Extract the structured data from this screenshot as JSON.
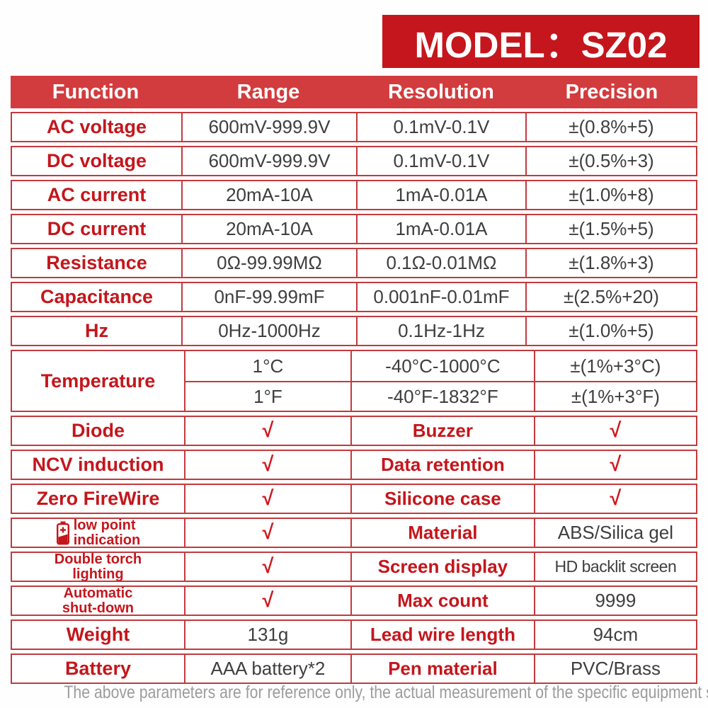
{
  "banner": {
    "title": "MODEL：SZ02"
  },
  "colors": {
    "brand_red": "#c4161c",
    "header_bg": "#d23c3e",
    "border_red": "#c23a3e",
    "check_red": "#d0191f",
    "dark_text": "#3e3e3e",
    "note_gray": "#9c9c9c"
  },
  "table": {
    "header": [
      "Function",
      "Range",
      "Resolution",
      "Precision"
    ],
    "spec_rows": [
      {
        "function": "AC voltage",
        "range": "600mV-999.9V",
        "resolution": "0.1mV-0.1V",
        "precision": "±(0.8%+5)"
      },
      {
        "function": "DC voltage",
        "range": "600mV-999.9V",
        "resolution": "0.1mV-0.1V",
        "precision": "±(0.5%+3)"
      },
      {
        "function": "AC current",
        "range": "20mA-10A",
        "resolution": "1mA-0.01A",
        "precision": "±(1.0%+8)"
      },
      {
        "function": "DC current",
        "range": "20mA-10A",
        "resolution": "1mA-0.01A",
        "precision": "±(1.5%+5)"
      },
      {
        "function": "Resistance",
        "range": "0Ω-99.99MΩ",
        "resolution": "0.1Ω-0.01MΩ",
        "precision": "±(1.8%+3)"
      },
      {
        "function": "Capacitance",
        "range": "0nF-99.99mF",
        "resolution": "0.001nF-0.01mF",
        "precision": "±(2.5%+20)"
      },
      {
        "function": "Hz",
        "range": "0Hz-1000Hz",
        "resolution": "0.1Hz-1Hz",
        "precision": "±(1.0%+5)"
      }
    ],
    "temperature": {
      "function": "Temperature",
      "rows": [
        {
          "range": "1°C",
          "resolution": "-40°C-1000°C",
          "precision": "±(1%+3°C)"
        },
        {
          "range": "1°F",
          "resolution": "-40°F-1832°F",
          "precision": "±(1%+3°F)"
        }
      ]
    },
    "feature_rows": [
      {
        "label": "Diode",
        "value": "√",
        "value_color": "red",
        "label2": "Buzzer",
        "value2": "√",
        "value2_color": "red"
      },
      {
        "label": "NCV induction",
        "value": "√",
        "value_color": "red",
        "label2": "Data retention",
        "value2": "√",
        "value2_color": "red"
      },
      {
        "label": "Zero FireWire",
        "value": "√",
        "value_color": "red",
        "label2": "Silicone case",
        "value2": "√",
        "value2_color": "red"
      },
      {
        "label": "low point indication",
        "label_lines": [
          "low point",
          "indication"
        ],
        "icon": "battery-low-icon",
        "value": "√",
        "value_color": "red",
        "label2": "Material",
        "value2": "ABS/Silica gel",
        "value2_color": "dark"
      },
      {
        "label": "Double torch lighting",
        "label_lines": [
          "Double torch",
          "lighting"
        ],
        "value": "√",
        "value_color": "red",
        "label2": "Screen display",
        "value2": "HD backlit screen",
        "value2_color": "dark"
      },
      {
        "label": "Automatic shut-down",
        "label_lines": [
          "Automatic",
          "shut-down"
        ],
        "value": "√",
        "value_color": "red",
        "label2": "Max count",
        "value2": "9999",
        "value2_color": "dark"
      },
      {
        "label": "Weight",
        "value": "131g",
        "value_color": "dark",
        "label2": "Lead wire length",
        "value2": "94cm",
        "value2_color": "dark"
      },
      {
        "label": "Battery",
        "value": "AAA battery*2",
        "value_color": "dark",
        "label2": "Pen material",
        "value2": "PVC/Brass",
        "value2_color": "dark"
      }
    ]
  },
  "footer": {
    "note": "The above parameters are for reference only, the actual measurement of the specific equipment shall prevail!"
  }
}
